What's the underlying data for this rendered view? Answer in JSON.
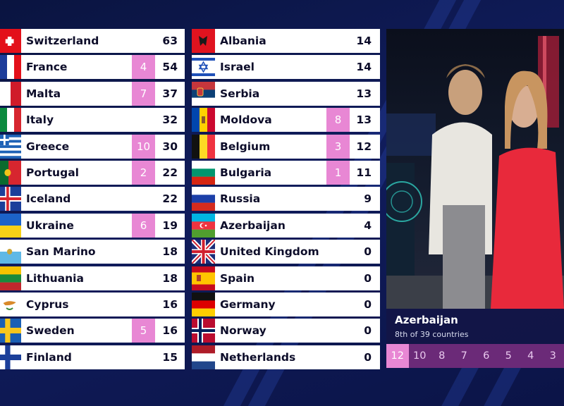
{
  "left_column": [
    {
      "country": "Switzerland",
      "points": "",
      "total": "63",
      "flag": "switzerland-flag"
    },
    {
      "country": "France",
      "points": "4",
      "total": "54",
      "flag": "france-flag"
    },
    {
      "country": "Malta",
      "points": "7",
      "total": "37",
      "flag": "malta-flag"
    },
    {
      "country": "Italy",
      "points": "",
      "total": "32",
      "flag": "italy-flag"
    },
    {
      "country": "Greece",
      "points": "10",
      "total": "30",
      "flag": "greece-flag"
    },
    {
      "country": "Portugal",
      "points": "2",
      "total": "22",
      "flag": "portugal-flag"
    },
    {
      "country": "Iceland",
      "points": "",
      "total": "22",
      "flag": "iceland-flag"
    },
    {
      "country": "Ukraine",
      "points": "6",
      "total": "19",
      "flag": "ukraine-flag"
    },
    {
      "country": "San Marino",
      "points": "",
      "total": "18",
      "flag": "san-marino-flag"
    },
    {
      "country": "Lithuania",
      "points": "",
      "total": "18",
      "flag": "lithuania-flag"
    },
    {
      "country": "Cyprus",
      "points": "",
      "total": "16",
      "flag": "cyprus-flag"
    },
    {
      "country": "Sweden",
      "points": "5",
      "total": "16",
      "flag": "sweden-flag"
    },
    {
      "country": "Finland",
      "points": "",
      "total": "15",
      "flag": "finland-flag"
    }
  ],
  "right_column": [
    {
      "country": "Albania",
      "points": "",
      "total": "14",
      "flag": "albania-flag"
    },
    {
      "country": "Israel",
      "points": "",
      "total": "14",
      "flag": "israel-flag"
    },
    {
      "country": "Serbia",
      "points": "",
      "total": "13",
      "flag": "serbia-flag"
    },
    {
      "country": "Moldova",
      "points": "8",
      "total": "13",
      "flag": "moldova-flag"
    },
    {
      "country": "Belgium",
      "points": "3",
      "total": "12",
      "flag": "belgium-flag"
    },
    {
      "country": "Bulgaria",
      "points": "1",
      "total": "11",
      "flag": "bulgaria-flag"
    },
    {
      "country": "Russia",
      "points": "",
      "total": "9",
      "flag": "russia-flag"
    },
    {
      "country": "Azerbaijan",
      "points": "",
      "total": "4",
      "flag": "azerbaijan-flag"
    },
    {
      "country": "United Kingdom",
      "points": "",
      "total": "0",
      "flag": "united-kingdom-flag"
    },
    {
      "country": "Spain",
      "points": "",
      "total": "0",
      "flag": "spain-flag"
    },
    {
      "country": "Germany",
      "points": "",
      "total": "0",
      "flag": "germany-flag"
    },
    {
      "country": "Norway",
      "points": "",
      "total": "0",
      "flag": "norway-flag"
    },
    {
      "country": "Netherlands",
      "points": "",
      "total": "0",
      "flag": "netherlands-flag"
    }
  ],
  "spokesperson": {
    "country": "Azerbaijan",
    "rank_text": "8th of 39 countries",
    "video_description_icon": "live-video-feed"
  },
  "points_to_give": [
    "12",
    "10",
    "8",
    "7",
    "6",
    "5",
    "4",
    "3"
  ],
  "active_point": "12",
  "colors": {
    "badge": "#e887d4",
    "points_bar": "#6b2a78",
    "background": "#101c5c",
    "row": "#ffffff"
  }
}
